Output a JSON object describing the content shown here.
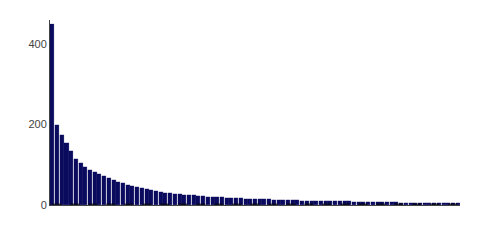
{
  "chart_data": {
    "type": "bar",
    "series": [
      {
        "type": "bar",
        "color": "#0a0a5e",
        "values": [
          450,
          200,
          175,
          155,
          135,
          115,
          105,
          95,
          88,
          82,
          78,
          72,
          68,
          62,
          58,
          54,
          50,
          47,
          44,
          42,
          39,
          37,
          35,
          33,
          31,
          29,
          28,
          27,
          26,
          25,
          24,
          23,
          22,
          21,
          20,
          20,
          19,
          18,
          18,
          17,
          17,
          16,
          16,
          15,
          15,
          14,
          14,
          13,
          13,
          13,
          12,
          12,
          12,
          11,
          11,
          11,
          10,
          10,
          10,
          10,
          9,
          9,
          9,
          9,
          8,
          8,
          8,
          8,
          8,
          7,
          7,
          7,
          7,
          7,
          6,
          6,
          6,
          6,
          6,
          5,
          5,
          5,
          5,
          5,
          5,
          4,
          4
        ]
      },
      {
        "type": "line",
        "color": "#000000",
        "line_style": "dashed",
        "values": [
          2,
          2,
          2,
          2,
          2,
          2,
          2,
          2,
          2,
          2,
          2,
          2,
          2,
          2,
          2,
          2,
          2,
          2,
          2,
          2,
          2,
          2,
          2,
          2,
          2,
          2,
          2,
          2,
          2,
          2,
          2,
          2,
          2,
          2,
          2,
          2,
          2,
          2,
          2,
          2,
          2,
          2,
          2,
          2,
          2,
          2,
          2,
          2,
          2,
          2,
          2,
          2,
          2,
          2,
          2,
          2,
          2,
          2,
          2,
          2,
          2,
          2,
          2,
          2,
          2,
          2,
          2,
          2,
          2,
          2,
          2,
          2,
          2,
          2,
          2,
          2,
          2,
          2,
          2,
          2,
          2,
          2,
          2,
          2,
          2,
          2,
          2
        ]
      }
    ],
    "ylim": [
      0,
      460
    ],
    "yticks": [
      0,
      200,
      400
    ],
    "grid": false,
    "tick_labels": "y"
  }
}
